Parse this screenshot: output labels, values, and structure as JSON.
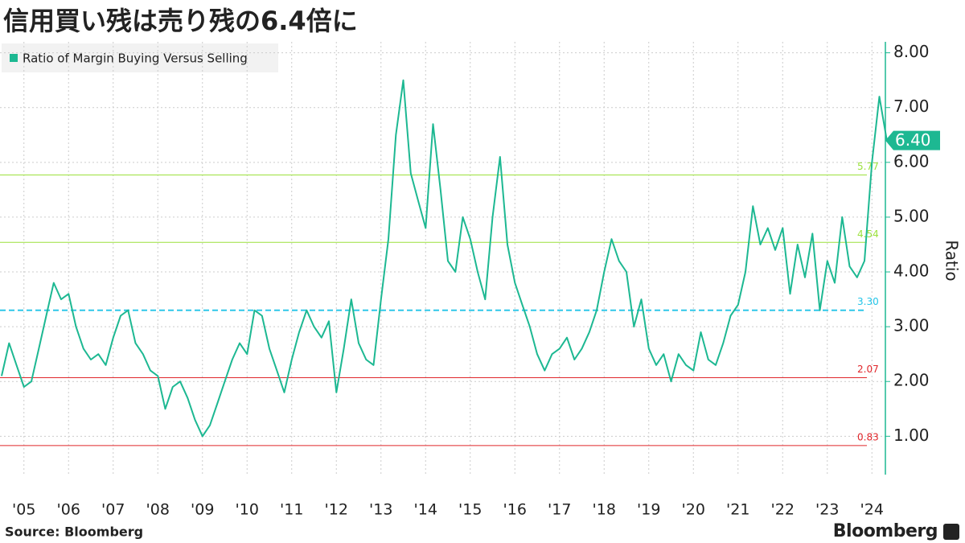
{
  "chart_data": {
    "type": "line",
    "title": "信用買い残は売り残の6.4倍に",
    "y_label": "Ratio",
    "source": "Source:  Bloomberg",
    "brand": "Bloomberg",
    "legend": "top-left",
    "grid": true,
    "ylim": [
      0.3,
      8.2
    ],
    "yticks": [
      {
        "value": 1,
        "label": "1.00"
      },
      {
        "value": 2,
        "label": "2.00"
      },
      {
        "value": 3,
        "label": "3.00"
      },
      {
        "value": 4,
        "label": "4.00"
      },
      {
        "value": 5,
        "label": "5.00"
      },
      {
        "value": 6,
        "label": "6.00"
      },
      {
        "value": 7,
        "label": "7.00"
      },
      {
        "value": 8,
        "label": "8.00"
      }
    ],
    "categories": [
      null,
      null,
      null,
      "'05",
      null,
      null,
      null,
      null,
      null,
      "'06",
      null,
      null,
      null,
      null,
      null,
      "'07",
      null,
      null,
      null,
      null,
      null,
      "'08",
      null,
      null,
      null,
      null,
      null,
      "'09",
      null,
      null,
      null,
      null,
      null,
      "'10",
      null,
      null,
      null,
      null,
      null,
      "'11",
      null,
      null,
      null,
      null,
      null,
      "'12",
      null,
      null,
      null,
      null,
      null,
      "'13",
      null,
      null,
      null,
      null,
      null,
      "'14",
      null,
      null,
      null,
      null,
      null,
      "'15",
      null,
      null,
      null,
      null,
      null,
      "'16",
      null,
      null,
      null,
      null,
      null,
      "'17",
      null,
      null,
      null,
      null,
      null,
      "'18",
      null,
      null,
      null,
      null,
      null,
      "'19",
      null,
      null,
      null,
      null,
      null,
      "'20",
      null,
      null,
      null,
      null,
      null,
      "'21",
      null,
      null,
      null,
      null,
      null,
      "'22",
      null,
      null,
      null,
      null,
      null,
      "'23",
      null,
      null,
      null,
      null,
      null,
      "'24",
      null,
      null
    ],
    "series": [
      {
        "name": "Ratio of Margin Buying Versus Selling",
        "color": "#1db892",
        "values": [
          2.1,
          2.7,
          2.3,
          1.9,
          2.0,
          2.6,
          3.2,
          3.8,
          3.5,
          3.6,
          3.0,
          2.6,
          2.4,
          2.5,
          2.3,
          2.8,
          3.2,
          3.3,
          2.7,
          2.5,
          2.2,
          2.1,
          1.5,
          1.9,
          2.0,
          1.7,
          1.3,
          1.0,
          1.2,
          1.6,
          2.0,
          2.4,
          2.7,
          2.5,
          3.3,
          3.2,
          2.6,
          2.2,
          1.8,
          2.4,
          2.9,
          3.3,
          3.0,
          2.8,
          3.1,
          1.8,
          2.6,
          3.5,
          2.7,
          2.4,
          2.3,
          3.5,
          4.6,
          6.5,
          7.5,
          5.8,
          5.3,
          4.8,
          6.7,
          5.5,
          4.2,
          4.0,
          5.0,
          4.6,
          4.0,
          3.5,
          5.0,
          6.1,
          4.5,
          3.8,
          3.4,
          3.0,
          2.5,
          2.2,
          2.5,
          2.6,
          2.8,
          2.4,
          2.6,
          2.9,
          3.3,
          4.0,
          4.6,
          4.2,
          4.0,
          3.0,
          3.5,
          2.6,
          2.3,
          2.5,
          2.0,
          2.5,
          2.3,
          2.2,
          2.9,
          2.4,
          2.3,
          2.7,
          3.2,
          3.4,
          4.0,
          5.2,
          4.5,
          4.8,
          4.4,
          4.8,
          3.6,
          4.5,
          3.9,
          4.7,
          3.3,
          4.2,
          3.8,
          5.0,
          4.1,
          3.9,
          4.2,
          6.0,
          7.2,
          6.4
        ]
      }
    ],
    "last_value": {
      "value": 6.4,
      "label": "6.40"
    },
    "reference_lines": [
      {
        "value": 5.77,
        "label": "5.77",
        "color": "#9be13c",
        "dashed": false
      },
      {
        "value": 4.54,
        "label": "4.54",
        "color": "#9be13c",
        "dashed": false
      },
      {
        "value": 3.3,
        "label": "3.30",
        "color": "#22c4e8",
        "dashed": true
      },
      {
        "value": 2.07,
        "label": "2.07",
        "color": "#e0262b",
        "dashed": false
      },
      {
        "value": 0.83,
        "label": "0.83",
        "color": "#e0262b",
        "dashed": false
      }
    ]
  }
}
